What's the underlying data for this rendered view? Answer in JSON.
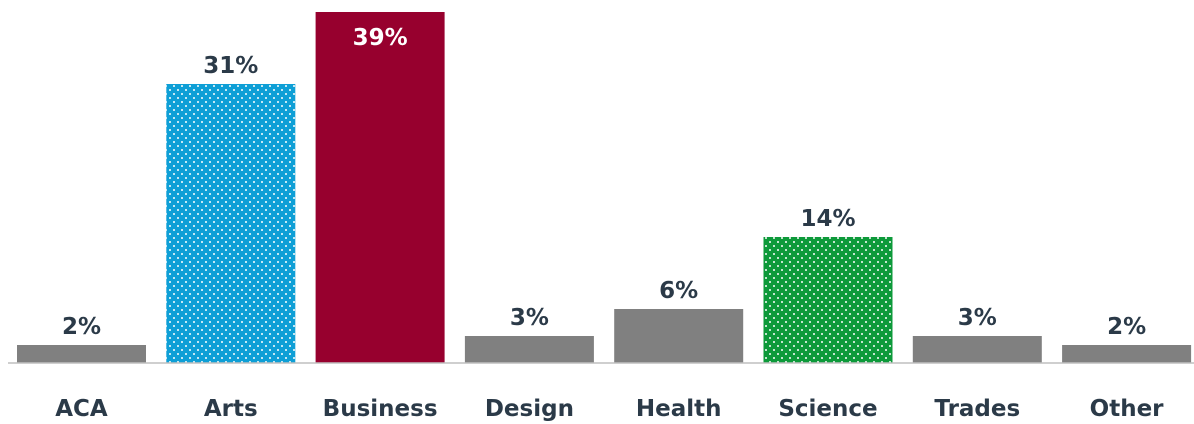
{
  "chart_data": {
    "type": "bar",
    "categories": [
      "ACA",
      "Arts",
      "Business",
      "Design",
      "Health",
      "Science",
      "Trades",
      "Other"
    ],
    "values": [
      2,
      31,
      39,
      3,
      6,
      14,
      3,
      2
    ],
    "value_labels": [
      "2%",
      "31%",
      "39%",
      "3%",
      "6%",
      "14%",
      "3%",
      "2%"
    ],
    "title": "",
    "xlabel": "",
    "ylabel": "",
    "ylim": [
      0,
      39
    ],
    "grid": false,
    "legend": "none",
    "bar_styles": [
      "solid",
      "dotted",
      "solid",
      "solid",
      "solid",
      "dotted",
      "solid",
      "solid"
    ],
    "colors": [
      "#808080",
      "#0e9fd6",
      "#97002e",
      "#808080",
      "#808080",
      "#0d9a3a",
      "#808080",
      "#808080"
    ],
    "label_colors": [
      "#2b3a48",
      "#2b3a48",
      "#ffffff",
      "#2b3a48",
      "#2b3a48",
      "#2b3a48",
      "#2b3a48",
      "#2b3a48"
    ],
    "axis_color": "#bfbfbf"
  }
}
